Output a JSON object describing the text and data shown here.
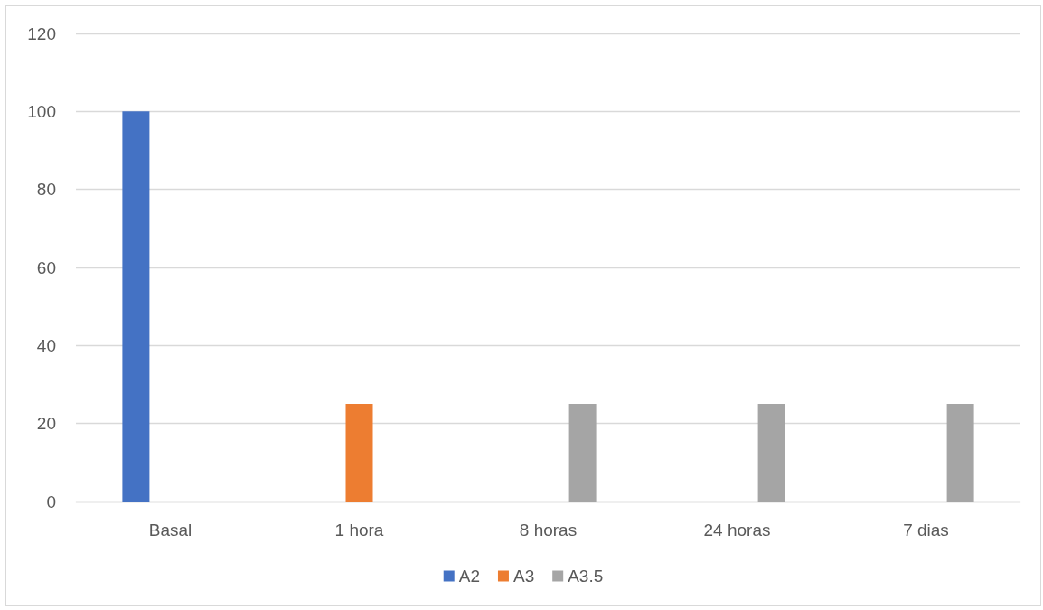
{
  "chart_data": {
    "type": "bar",
    "categories": [
      "Basal",
      "1 hora",
      "8 horas",
      "24 horas",
      "7 dias"
    ],
    "series": [
      {
        "name": "A2",
        "color": "#4472c4",
        "values": [
          100,
          null,
          null,
          null,
          null
        ]
      },
      {
        "name": "A3",
        "color": "#ed7d31",
        "values": [
          null,
          25,
          null,
          null,
          null
        ]
      },
      {
        "name": "A3.5",
        "color": "#a5a5a5",
        "values": [
          null,
          null,
          25,
          25,
          25
        ]
      }
    ],
    "ylim": [
      0,
      120
    ],
    "yticks": [
      0,
      20,
      40,
      60,
      80,
      100,
      120
    ],
    "grid": "y",
    "legend": "bottom"
  }
}
